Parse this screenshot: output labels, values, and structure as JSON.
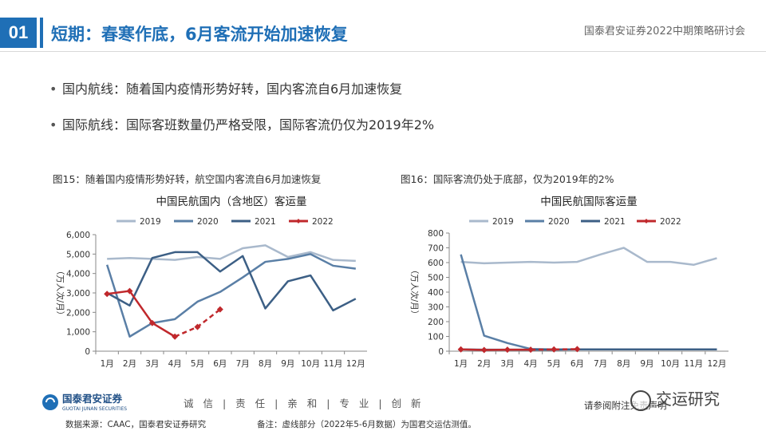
{
  "header": {
    "section_number": "01",
    "title": "短期：春寒作底，6月客流开始加速恢复",
    "conference": "国泰君安证券2022中期策略研讨会"
  },
  "bullets": [
    "国内航线：随着国内疫情形势好转，国内客流自6月加速恢复",
    "国际航线：国际客班数量仍严格受限，国际客流仍仅为2019年2%"
  ],
  "figures": [
    {
      "caption": "图15：随着国内疫情形势好转，航空国内客流自6月加速恢复"
    },
    {
      "caption": "图16：国际客流仍处于底部，仅为2019年的2%"
    }
  ],
  "chart_data": [
    {
      "type": "line",
      "title": "中国民航国内（含地区）客运量",
      "ylabel": "（万人次/月）",
      "categories": [
        "1月",
        "2月",
        "3月",
        "4月",
        "5月",
        "6月",
        "7月",
        "8月",
        "9月",
        "10月",
        "11月",
        "12月"
      ],
      "ylim": [
        0,
        6000
      ],
      "yticks": [
        "0",
        "1,000",
        "2,000",
        "3,000",
        "4,000",
        "5,000",
        "6,000"
      ],
      "series": [
        {
          "name": "2019",
          "color": "#a9b9cc",
          "values": [
            4750,
            4800,
            4750,
            4700,
            4850,
            4750,
            5300,
            5450,
            4850,
            5100,
            4700,
            4650
          ]
        },
        {
          "name": "2020",
          "color": "#5a7fa6",
          "values": [
            4450,
            750,
            1450,
            1650,
            2550,
            3050,
            3800,
            4600,
            4750,
            5000,
            4400,
            4250
          ]
        },
        {
          "name": "2021",
          "color": "#3c5f85",
          "values": [
            3000,
            2350,
            4800,
            5100,
            5100,
            4100,
            4900,
            2200,
            3600,
            3900,
            2100,
            2700
          ]
        },
        {
          "name": "2022",
          "color": "#c0282c",
          "values": [
            2950,
            3100,
            1450,
            750,
            1250,
            2150,
            null,
            null,
            null,
            null,
            null,
            null
          ]
        }
      ]
    },
    {
      "type": "line",
      "title": "中国民航国际客运量",
      "ylabel": "（万人次/月）",
      "categories": [
        "1月",
        "2月",
        "3月",
        "4月",
        "5月",
        "6月",
        "7月",
        "8月",
        "9月",
        "10月",
        "11月",
        "12月"
      ],
      "ylim": [
        0,
        800
      ],
      "yticks": [
        "0",
        "100",
        "200",
        "300",
        "400",
        "500",
        "600",
        "700",
        "800"
      ],
      "series": [
        {
          "name": "2019",
          "color": "#a9b9cc",
          "values": [
            605,
            595,
            600,
            605,
            600,
            605,
            655,
            700,
            605,
            605,
            585,
            630
          ]
        },
        {
          "name": "2020",
          "color": "#5a7fa6",
          "values": [
            655,
            105,
            55,
            15,
            12,
            12,
            12,
            12,
            12,
            12,
            12,
            12
          ]
        },
        {
          "name": "2021",
          "color": "#3c5f85",
          "values": [
            12,
            10,
            10,
            10,
            10,
            12,
            12,
            12,
            12,
            12,
            12,
            12
          ]
        },
        {
          "name": "2022",
          "color": "#c0282c",
          "values": [
            12,
            8,
            10,
            10,
            12,
            14,
            null,
            null,
            null,
            null,
            null,
            null
          ]
        }
      ]
    }
  ],
  "footer": {
    "company": "国泰君安证券",
    "company_en": "GUOTAI JUNAN SECURITIES",
    "slogan": "诚 信 | 责 任 | 亲 和 | 专 业 | 创 新",
    "source": "数据来源：CAAC，国泰君安证券研究",
    "remark": "备注：虚线部分（2022年5-6月数据）为国君交运估测值。",
    "disclaimer": "请参阅附注免责声明",
    "watermark": "交运研究"
  }
}
